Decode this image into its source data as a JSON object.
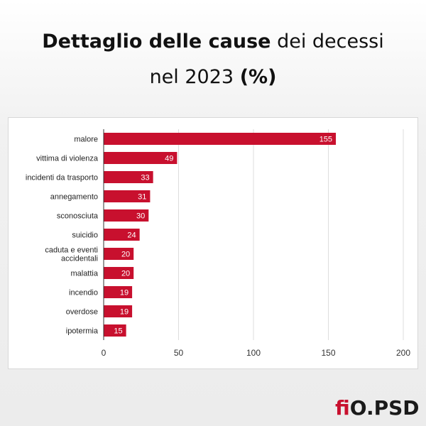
{
  "header": {
    "title_bold_1": "Dettaglio delle cause",
    "title_normal_1": "dei decessi",
    "title_normal_2": "nel 2023",
    "title_bold_2": "(%)"
  },
  "logo": {
    "text_accent": "fi",
    "text_rest": "O.PSD"
  },
  "colors": {
    "bar": "#c8102e",
    "grid": "#dddddd",
    "axis": "#333333",
    "bar_label": "#ffffff"
  },
  "chart_data": {
    "type": "bar",
    "orientation": "horizontal",
    "categories": [
      "malore",
      "vittima di violenza",
      "incidenti da trasporto",
      "annegamento",
      "sconosciuta",
      "suicidio",
      "caduta e eventi accidentali",
      "malattia",
      "incendio",
      "overdose",
      "ipotermia"
    ],
    "values": [
      155,
      49,
      33,
      31,
      30,
      24,
      20,
      20,
      19,
      19,
      15
    ],
    "xlim": [
      0,
      200
    ],
    "xticks": [
      0,
      50,
      100,
      150,
      200
    ],
    "grid": true,
    "data_labels": true
  }
}
